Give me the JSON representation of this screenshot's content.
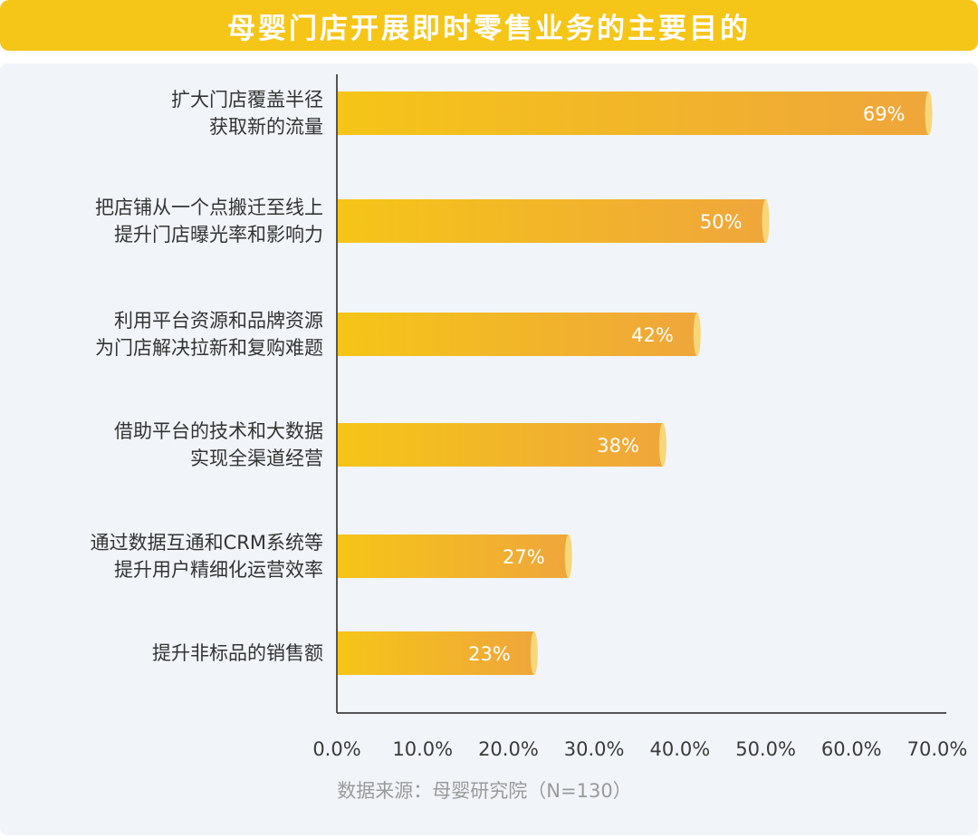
{
  "title": "母婴门店开展即时零售业务的主要目的",
  "source": "数据来源：母婴研究院（N=130）",
  "colors": {
    "title_bg": "#F5C518",
    "bar_start": "#F5C518",
    "bar_end": "#EFA63B",
    "panel_bg": "#F1F5F9"
  },
  "chart_data": {
    "type": "bar",
    "orientation": "horizontal",
    "categories": [
      [
        "扩大门店覆盖半径",
        "获取新的流量"
      ],
      [
        "把店铺从一个点搬迁至线上",
        "提升门店曝光率和影响力"
      ],
      [
        "利用平台资源和品牌资源",
        "为门店解决拉新和复购难题"
      ],
      [
        "借助平台的技术和大数据",
        "实现全渠道经营"
      ],
      [
        "通过数据互通和CRM系统等",
        "提升用户精细化运营效率"
      ],
      [
        "提升非标品的销售额"
      ]
    ],
    "values": [
      69,
      50,
      42,
      38,
      27,
      23
    ],
    "value_labels": [
      "69%",
      "50%",
      "42%",
      "38%",
      "27%",
      "23%"
    ],
    "xlim": [
      0,
      70
    ],
    "ticks": [
      "0.0%",
      "10.0%",
      "20.0%",
      "30.0%",
      "40.0%",
      "50.0%",
      "60.0%",
      "70.0%"
    ],
    "grid": false
  }
}
